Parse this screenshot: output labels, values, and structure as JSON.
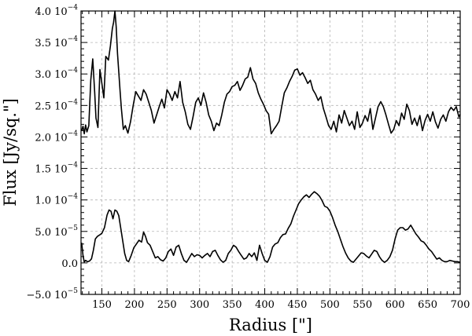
{
  "chart_data": {
    "type": "line",
    "title": "",
    "xlabel": "Radius [\"]",
    "ylabel": "Flux [Jy/sq.\"]",
    "xlim": [
      118,
      700
    ],
    "ylim": [
      -5e-05,
      0.0004
    ],
    "grid": true,
    "legend": "none",
    "line_color": "#000000",
    "x_ticks": [
      {
        "value": 150,
        "label": "150"
      },
      {
        "value": 200,
        "label": "200"
      },
      {
        "value": 250,
        "label": "250"
      },
      {
        "value": 300,
        "label": "300"
      },
      {
        "value": 350,
        "label": "350"
      },
      {
        "value": 400,
        "label": "400"
      },
      {
        "value": 450,
        "label": "450"
      },
      {
        "value": 500,
        "label": "500"
      },
      {
        "value": 550,
        "label": "550"
      },
      {
        "value": 600,
        "label": "600"
      },
      {
        "value": 650,
        "label": "650"
      },
      {
        "value": 700,
        "label": "700"
      }
    ],
    "y_ticks": [
      {
        "value": -5e-05,
        "mantissa": "−5.0 10",
        "exp": "−5"
      },
      {
        "value": 0,
        "mantissa": "0.0",
        "exp": ""
      },
      {
        "value": 5e-05,
        "mantissa": "5.0 10",
        "exp": "−5"
      },
      {
        "value": 0.0001,
        "mantissa": "1.0 10",
        "exp": "−4"
      },
      {
        "value": 0.00015,
        "mantissa": "1.5 10",
        "exp": "−4"
      },
      {
        "value": 0.0002,
        "mantissa": "2.0 10",
        "exp": "−4"
      },
      {
        "value": 0.00025,
        "mantissa": "2.5 10",
        "exp": "−4"
      },
      {
        "value": 0.0003,
        "mantissa": "3.0 10",
        "exp": "−4"
      },
      {
        "value": 0.00035,
        "mantissa": "3.5 10",
        "exp": "−4"
      },
      {
        "value": 0.0004,
        "mantissa": "4.0 10",
        "exp": "−4"
      }
    ],
    "series": [
      {
        "x": [
          119,
          121,
          123,
          125,
          127,
          130,
          133,
          136,
          139,
          141,
          144,
          147,
          150,
          153,
          156,
          160,
          163,
          166,
          168,
          170,
          172,
          174,
          176,
          178,
          180,
          183,
          186,
          190,
          194,
          198,
          202,
          206,
          210,
          214,
          218,
          222,
          226,
          230,
          234,
          238,
          242,
          246,
          250,
          254,
          258,
          262,
          266,
          270,
          274,
          278,
          282,
          286,
          290,
          294,
          298,
          302,
          306,
          310,
          314,
          318,
          322,
          326,
          330,
          334,
          338,
          342,
          346,
          350,
          354,
          358,
          362,
          366,
          370,
          374,
          378,
          382,
          386,
          390,
          394,
          398,
          402,
          406,
          410,
          414,
          418,
          422,
          426,
          430,
          434,
          438,
          442,
          446,
          450,
          454,
          458,
          462,
          466,
          470,
          474,
          478,
          482,
          486,
          490,
          494,
          498,
          502,
          506,
          510,
          514,
          518,
          522,
          526,
          530,
          534,
          538,
          542,
          546,
          550,
          554,
          558,
          562,
          566,
          570,
          574,
          578,
          582,
          586,
          590,
          594,
          598,
          602,
          606,
          610,
          614,
          618,
          622,
          626,
          630,
          634,
          638,
          642,
          646,
          650,
          654,
          658,
          662,
          666,
          670,
          674,
          678,
          682,
          686,
          690,
          694,
          698,
          700
        ],
        "values": [
          0.00021,
          0.000217,
          0.000205,
          0.000219,
          0.000208,
          0.000218,
          0.00029,
          0.000324,
          0.00027,
          0.00023,
          0.000215,
          0.000307,
          0.000285,
          0.000262,
          0.000328,
          0.000322,
          0.000344,
          0.000372,
          0.000382,
          0.0004,
          0.000375,
          0.000332,
          0.000303,
          0.000272,
          0.000245,
          0.000212,
          0.000218,
          0.000206,
          0.000224,
          0.00025,
          0.000272,
          0.000265,
          0.000258,
          0.000275,
          0.000268,
          0.000255,
          0.000242,
          0.000222,
          0.000235,
          0.000248,
          0.00026,
          0.000246,
          0.000275,
          0.000268,
          0.000258,
          0.000272,
          0.000262,
          0.000288,
          0.000255,
          0.00024,
          0.00022,
          0.000212,
          0.000232,
          0.000255,
          0.000262,
          0.00025,
          0.00027,
          0.000255,
          0.000235,
          0.000225,
          0.00021,
          0.000222,
          0.000218,
          0.000235,
          0.000255,
          0.000268,
          0.000272,
          0.00028,
          0.000282,
          0.000288,
          0.000274,
          0.000282,
          0.000292,
          0.000295,
          0.00031,
          0.000292,
          0.000285,
          0.00027,
          0.00026,
          0.000252,
          0.000242,
          0.000236,
          0.000205,
          0.000212,
          0.000218,
          0.000225,
          0.000248,
          0.00027,
          0.000278,
          0.000288,
          0.000296,
          0.000306,
          0.000308,
          0.000298,
          0.000302,
          0.000294,
          0.000285,
          0.00029,
          0.000275,
          0.000268,
          0.000258,
          0.000264,
          0.000245,
          0.000232,
          0.000218,
          0.000212,
          0.000225,
          0.000208,
          0.000235,
          0.000222,
          0.000242,
          0.00023,
          0.000218,
          0.000225,
          0.000212,
          0.00024,
          0.000215,
          0.000222,
          0.000234,
          0.000225,
          0.000245,
          0.000212,
          0.00023,
          0.000248,
          0.000256,
          0.000248,
          0.000235,
          0.00022,
          0.000206,
          0.000212,
          0.000226,
          0.000218,
          0.000238,
          0.000228,
          0.000252,
          0.000242,
          0.00022,
          0.00023,
          0.000218,
          0.000234,
          0.00021,
          0.000226,
          0.000236,
          0.000225,
          0.00024,
          0.000224,
          0.000214,
          0.000228,
          0.000235,
          0.000225,
          0.00024,
          0.000247,
          0.000242,
          0.000248,
          0.000232,
          0.000236
        ]
      },
      {
        "x": [
          119,
          121,
          123,
          125,
          128,
          131,
          134,
          137,
          140,
          143,
          146,
          150,
          154,
          158,
          161,
          164,
          167,
          170,
          173,
          176,
          179,
          182,
          185,
          188,
          191,
          195,
          199,
          203,
          207,
          211,
          214,
          217,
          220,
          224,
          228,
          232,
          236,
          240,
          244,
          248,
          252,
          256,
          260,
          264,
          268,
          272,
          276,
          280,
          284,
          288,
          292,
          296,
          300,
          304,
          308,
          312,
          316,
          320,
          324,
          328,
          332,
          336,
          340,
          344,
          348,
          352,
          356,
          360,
          364,
          368,
          372,
          376,
          380,
          384,
          388,
          392,
          396,
          400,
          404,
          408,
          412,
          416,
          420,
          424,
          428,
          432,
          436,
          440,
          444,
          448,
          452,
          456,
          460,
          464,
          468,
          472,
          476,
          480,
          484,
          488,
          492,
          496,
          500,
          504,
          508,
          512,
          516,
          520,
          524,
          528,
          532,
          536,
          540,
          544,
          548,
          552,
          556,
          560,
          564,
          568,
          572,
          576,
          580,
          584,
          588,
          592,
          596,
          600,
          604,
          608,
          612,
          616,
          620,
          624,
          628,
          632,
          636,
          640,
          644,
          648,
          652,
          656,
          660,
          664,
          668,
          672,
          676,
          680,
          684,
          688,
          692,
          696,
          700
        ],
        "values": [
          3.2e-05,
          1.2e-05,
          1.5e-06,
          4e-06,
          1.8e-06,
          3e-06,
          6.5e-06,
          2e-05,
          3.8e-05,
          4.2e-05,
          4.4e-05,
          4.7e-05,
          5.6e-05,
          7.6e-05,
          8.4e-05,
          8.2e-05,
          7e-05,
          8.4e-05,
          8.2e-05,
          7.5e-05,
          5.5e-05,
          3.5e-05,
          1.5e-05,
          4e-06,
          2e-06,
          1.2e-05,
          2.4e-05,
          3e-05,
          3.6e-05,
          3.3e-05,
          4.9e-05,
          4.2e-05,
          3.2e-05,
          2.8e-05,
          1.8e-05,
          8e-06,
          1e-05,
          5e-06,
          3e-06,
          8e-06,
          1.8e-05,
          2.2e-05,
          1.2e-05,
          2.5e-05,
          2.8e-05,
          1.5e-05,
          4e-06,
          1e-06,
          8e-06,
          1.5e-05,
          1e-05,
          1.3e-05,
          1.2e-05,
          8e-06,
          1.2e-05,
          1.5e-05,
          1e-05,
          1.8e-05,
          2e-05,
          1.2e-05,
          5e-06,
          1e-06,
          4e-06,
          1.5e-05,
          2e-05,
          2.8e-05,
          2.5e-05,
          1.8e-05,
          1.2e-05,
          6e-06,
          8e-06,
          1.5e-05,
          1e-05,
          1.6e-05,
          4e-06,
          2.8e-05,
          1.5e-05,
          4e-06,
          1e-06,
          1e-05,
          2.5e-05,
          3e-05,
          3.2e-05,
          4e-05,
          4.5e-05,
          4.6e-05,
          5.5e-05,
          6.2e-05,
          7.4e-05,
          8.4e-05,
          9.4e-05,
          0.0001,
          0.000105,
          0.000108,
          0.000104,
          0.000109,
          0.000113,
          0.00011,
          0.000106,
          9.9e-05,
          9e-05,
          8.8e-05,
          8.2e-05,
          7.2e-05,
          6e-05,
          5e-05,
          3.8e-05,
          2.6e-05,
          1.6e-05,
          8e-06,
          3e-06,
          1e-06,
          6e-06,
          1.1e-05,
          1.6e-05,
          1.5e-05,
          1.1e-05,
          8e-06,
          1.4e-05,
          2e-05,
          1.8e-05,
          1e-05,
          4e-06,
          1e-06,
          4e-06,
          1e-05,
          2e-05,
          3.8e-05,
          5.2e-05,
          5.6e-05,
          5.6e-05,
          5.2e-05,
          5.4e-05,
          6e-05,
          5.3e-05,
          4.6e-05,
          4.1e-05,
          3.5e-05,
          3.3e-05,
          2.8e-05,
          2.2e-05,
          1.8e-05,
          1.2e-05,
          6e-06,
          8e-06,
          4e-06,
          2e-06,
          2e-06,
          4e-06,
          3e-06,
          2e-06,
          2e-06,
          1e-06
        ]
      }
    ]
  }
}
